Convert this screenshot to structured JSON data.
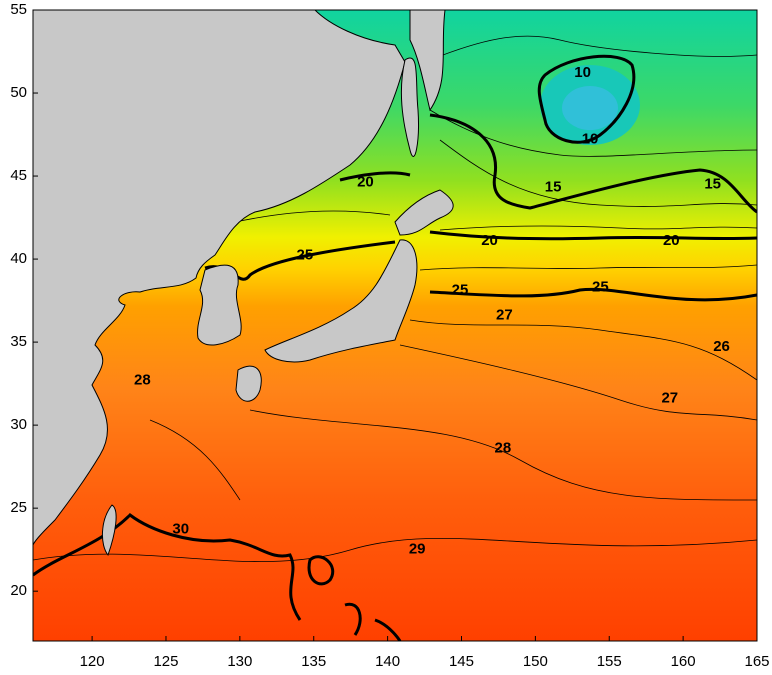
{
  "map": {
    "xlim": [
      116,
      165
    ],
    "ylim": [
      17,
      55
    ],
    "xticks": [
      120,
      125,
      130,
      135,
      140,
      145,
      150,
      155,
      160,
      165
    ],
    "yticks": [
      20,
      25,
      30,
      35,
      40,
      45,
      50,
      55
    ],
    "contour_labels": [
      {
        "value": 10,
        "lon": 153.2,
        "lat": 51.2
      },
      {
        "value": 10,
        "lon": 153.7,
        "lat": 47.2
      },
      {
        "value": 15,
        "lon": 151.2,
        "lat": 44.3
      },
      {
        "value": 15,
        "lon": 162.0,
        "lat": 44.5
      },
      {
        "value": 20,
        "lon": 138.5,
        "lat": 44.6
      },
      {
        "value": 20,
        "lon": 146.9,
        "lat": 41.1
      },
      {
        "value": 20,
        "lon": 159.2,
        "lat": 41.1
      },
      {
        "value": 25,
        "lon": 134.4,
        "lat": 40.2
      },
      {
        "value": 25,
        "lon": 144.9,
        "lat": 38.1
      },
      {
        "value": 25,
        "lon": 154.4,
        "lat": 38.3
      },
      {
        "value": 26,
        "lon": 162.6,
        "lat": 34.7
      },
      {
        "value": 27,
        "lon": 147.9,
        "lat": 36.6
      },
      {
        "value": 27,
        "lon": 159.1,
        "lat": 31.6
      },
      {
        "value": 28,
        "lon": 123.4,
        "lat": 32.7
      },
      {
        "value": 28,
        "lon": 147.8,
        "lat": 28.6
      },
      {
        "value": 29,
        "lon": 142.0,
        "lat": 22.5
      },
      {
        "value": 30,
        "lon": 126.0,
        "lat": 23.7
      }
    ]
  }
}
